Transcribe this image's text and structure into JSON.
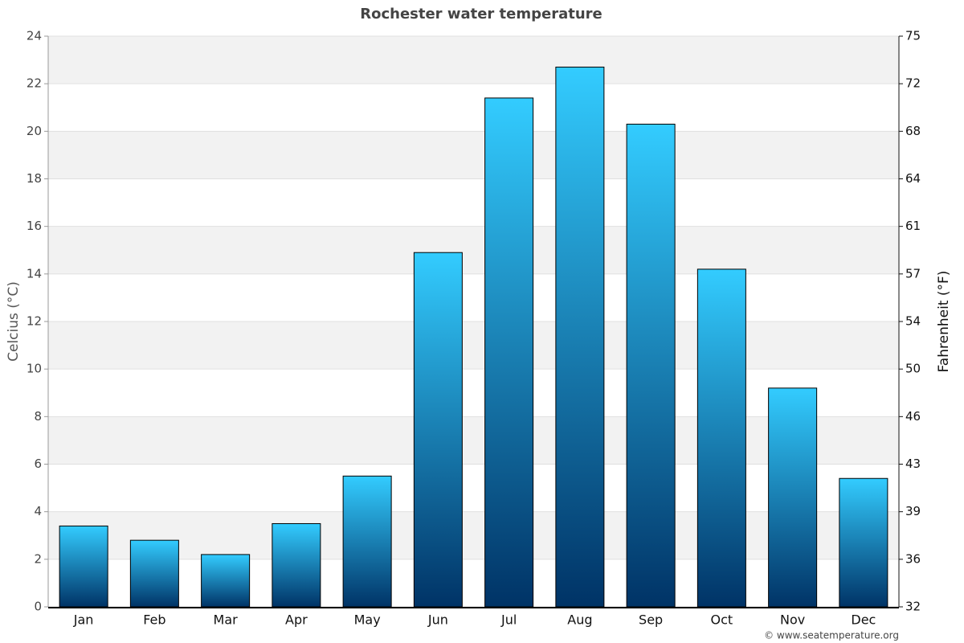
{
  "chart_data": {
    "type": "bar",
    "title": "Rochester water temperature",
    "categories": [
      "Jan",
      "Feb",
      "Mar",
      "Apr",
      "May",
      "Jun",
      "Jul",
      "Aug",
      "Sep",
      "Oct",
      "Nov",
      "Dec"
    ],
    "values": [
      3.4,
      2.8,
      2.2,
      3.5,
      5.5,
      14.9,
      21.4,
      22.7,
      20.3,
      14.2,
      9.2,
      5.4
    ],
    "gradient": [
      "#33ccff",
      "#003366"
    ],
    "ylabel": "Celcius (°C)",
    "y2label": "Fahrenheit (°F)",
    "ylim": [
      0,
      24
    ],
    "yticks": [
      0,
      2,
      4,
      6,
      8,
      10,
      12,
      14,
      16,
      18,
      20,
      22,
      24
    ],
    "y2lim": [
      32,
      75.2
    ],
    "y2ticks": [
      32,
      {
        "value": 35.6,
        "label": "36"
      },
      {
        "value": 39.2,
        "label": "39"
      },
      {
        "value": 42.8,
        "label": "43"
      },
      {
        "value": 46.4,
        "label": "46"
      },
      50,
      {
        "value": 53.6,
        "label": "54"
      },
      {
        "value": 57.2,
        "label": "57"
      },
      {
        "value": 60.8,
        "label": "61"
      },
      {
        "value": 64.4,
        "label": "64"
      },
      68,
      {
        "value": 71.6,
        "label": "72"
      },
      {
        "value": 75.2,
        "label": "75"
      }
    ],
    "grid": true,
    "banded": true,
    "credit": "© www.seatemperature.org"
  }
}
